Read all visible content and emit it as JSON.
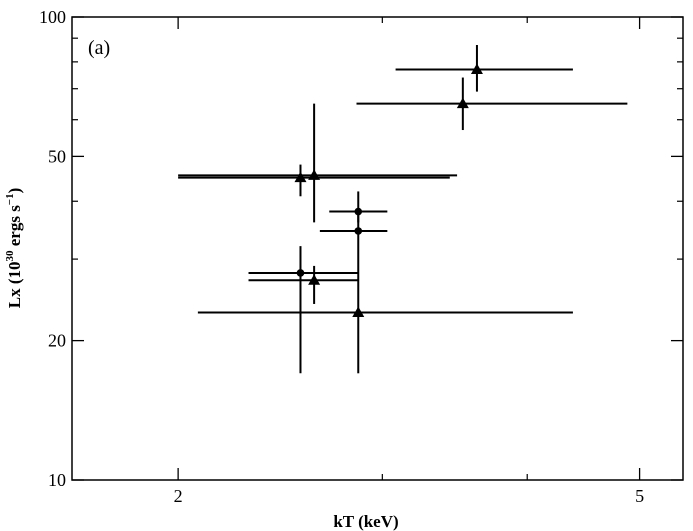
{
  "chart_data": {
    "type": "scatter",
    "panel_label": "(a)",
    "xlabel": "kT (keV)",
    "ylabel": "Lx (10³⁰ ergs s⁻¹)",
    "ylabel_main": "Lx (10",
    "ylabel_exp1": "30",
    "ylabel_mid": " ergs s",
    "ylabel_exp2": "−1",
    "ylabel_end": ")",
    "x_scale": "log",
    "y_scale": "log",
    "xlim": [
      1.62,
      5.45
    ],
    "ylim": [
      10,
      100
    ],
    "x_ticks": [
      2,
      5
    ],
    "y_ticks": [
      10,
      20,
      50,
      100
    ],
    "grid": false,
    "series": [
      {
        "marker": "triangle",
        "points": [
          {
            "x": 3.62,
            "y": 77,
            "xerr": [
              3.08,
              4.38
            ],
            "yerr": [
              69,
              87
            ]
          },
          {
            "x": 3.52,
            "y": 65,
            "xerr": [
              2.85,
              4.88
            ],
            "yerr": [
              57,
              74
            ]
          },
          {
            "x": 2.55,
            "y": 45,
            "xerr": [
              2.0,
              3.43
            ],
            "yerr": [
              41,
              48
            ]
          },
          {
            "x": 2.62,
            "y": 45.5,
            "xerr": [
              2.0,
              3.48
            ],
            "yerr": [
              36,
              65
            ]
          },
          {
            "x": 2.62,
            "y": 27,
            "xerr": [
              2.3,
              2.86
            ],
            "yerr": [
              24,
              29
            ]
          },
          {
            "x": 2.86,
            "y": 23,
            "xerr": [
              2.08,
              4.38
            ],
            "yerr": [
              17,
              23
            ]
          }
        ]
      },
      {
        "marker": "circle",
        "points": [
          {
            "x": 2.86,
            "y": 38,
            "xerr": [
              2.7,
              3.03
            ],
            "yerr": [
              36,
              42
            ]
          },
          {
            "x": 2.86,
            "y": 34.5,
            "xerr": [
              2.65,
              3.03
            ],
            "yerr": [
              23,
              38
            ]
          },
          {
            "x": 2.55,
            "y": 28,
            "xerr": [
              2.3,
              2.86
            ],
            "yerr": [
              17,
              32
            ]
          }
        ]
      }
    ]
  }
}
